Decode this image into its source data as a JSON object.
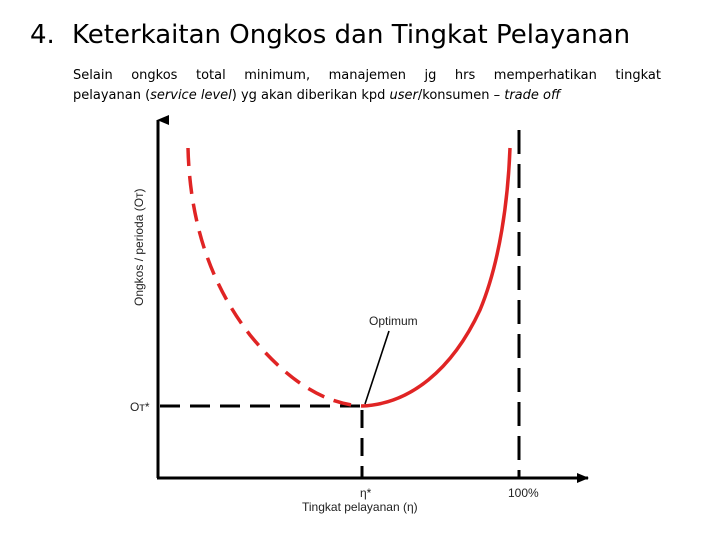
{
  "slide": {
    "number": "4.",
    "title": "Keterkaitan Ongkos dan Tingkat Pelayanan"
  },
  "paragraph": {
    "line1": "Selain ongkos total minimum, manajemen jg hrs memperhatikan tingkat",
    "line2_a": "pelayanan (",
    "line2_em1": "service level",
    "line2_b": ") yg akan diberikan kpd ",
    "line2_em2": "user",
    "line2_c": "/konsumen – ",
    "line2_em3": "trade off"
  },
  "diagram": {
    "y_axis_label": "Ongkos / perioda (Oᴛ)",
    "x_axis_label": "Tingkat pelayanan (η)",
    "optimum_label": "Optimum",
    "y_tick_label": "Oᴛ*",
    "x_tick_optimum": "η*",
    "x_tick_full": "100%",
    "colors": {
      "curve": "#e02424",
      "axis": "#000000"
    }
  }
}
